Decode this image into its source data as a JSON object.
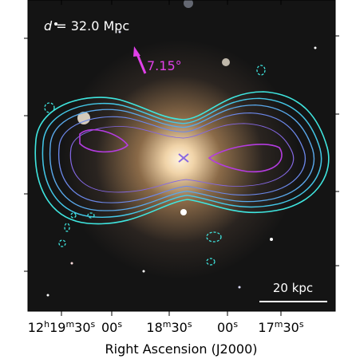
{
  "annotations": {
    "distance": {
      "symbol": "d",
      "text": "= 32.0 Mpc"
    },
    "angle": "7.15°",
    "scale_bar": "20 kpc"
  },
  "x_axis": {
    "label": "Right Ascension (J2000)",
    "ticks": [
      [
        [
          "12",
          "h"
        ],
        [
          "19",
          "m"
        ],
        [
          "30",
          "s"
        ]
      ],
      [
        [
          "00",
          "s"
        ]
      ],
      [
        [
          "18",
          "m"
        ],
        [
          "30",
          "s"
        ]
      ],
      [
        [
          "00",
          "s"
        ]
      ],
      [
        [
          "17",
          "m"
        ],
        [
          "30",
          "s"
        ]
      ]
    ]
  }
}
